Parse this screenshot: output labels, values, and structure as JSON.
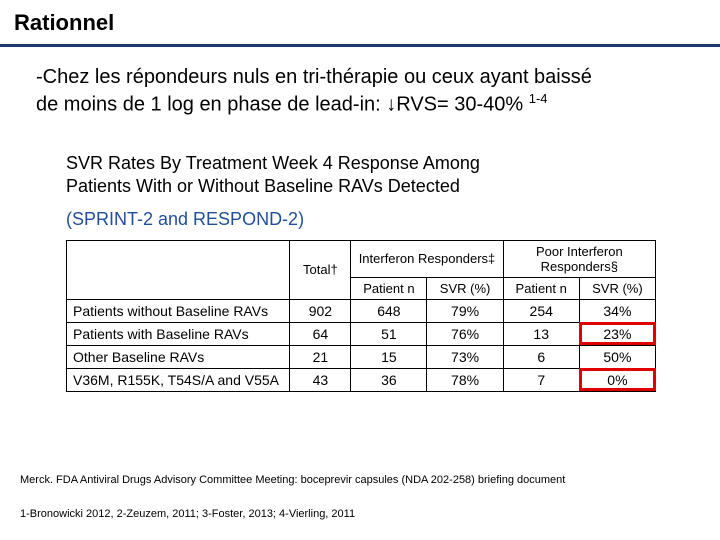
{
  "title": "Rationnel",
  "bullet": {
    "line1": "-Chez les répondeurs nuls en tri-thérapie ou ceux ayant baissé",
    "line2a": "de moins de 1 log en phase de lead-in: ",
    "arrow": "↓",
    "line2b": "RVS= 30-40% ",
    "sup": "1-4"
  },
  "chart": {
    "title_l1": "SVR Rates By Treatment Week 4 Response Among",
    "title_l2": "Patients With or Without Baseline RAVs Detected",
    "subtitle": "(SPRINT-2 and RESPOND-2)",
    "columns": {
      "blank": "",
      "total": "Total†",
      "group_a": "Interferon Responders‡",
      "group_b": "Poor Interferon Responders§",
      "pat_n": "Patient n",
      "svr": "SVR (%)"
    },
    "rows": [
      {
        "label": "Patients without Baseline RAVs",
        "total": "902",
        "a_n": "648",
        "a_svr": "79%",
        "b_n": "254",
        "b_svr": "34%",
        "hl": ""
      },
      {
        "label": "Patients with Baseline RAVs",
        "total": "64",
        "a_n": "51",
        "a_svr": "76%",
        "b_n": "13",
        "b_svr": "23%",
        "hl": "hl1"
      },
      {
        "label": "Other Baseline RAVs",
        "total": "21",
        "a_n": "15",
        "a_svr": "73%",
        "b_n": "6",
        "b_svr": "50%",
        "hl": ""
      },
      {
        "label": "V36M, R155K, T54S/A and V55A",
        "total": "43",
        "a_n": "36",
        "a_svr": "78%",
        "b_n": "7",
        "b_svr": "0%",
        "hl": "hl2"
      }
    ]
  },
  "footnote1": "Merck. FDA Antiviral Drugs Advisory Committee Meeting: boceprevir capsules (NDA 202-258) briefing document",
  "footnote2": "1-Bronowicki 2012, 2-Zeuzem, 2011; 3-Foster, 2013; 4-Vierling, 2011",
  "colors": {
    "rule": "#1a3a6b",
    "subtitle": "#1f4e9b",
    "highlight": "#e00000",
    "text": "#000000",
    "background": "#ffffff"
  }
}
